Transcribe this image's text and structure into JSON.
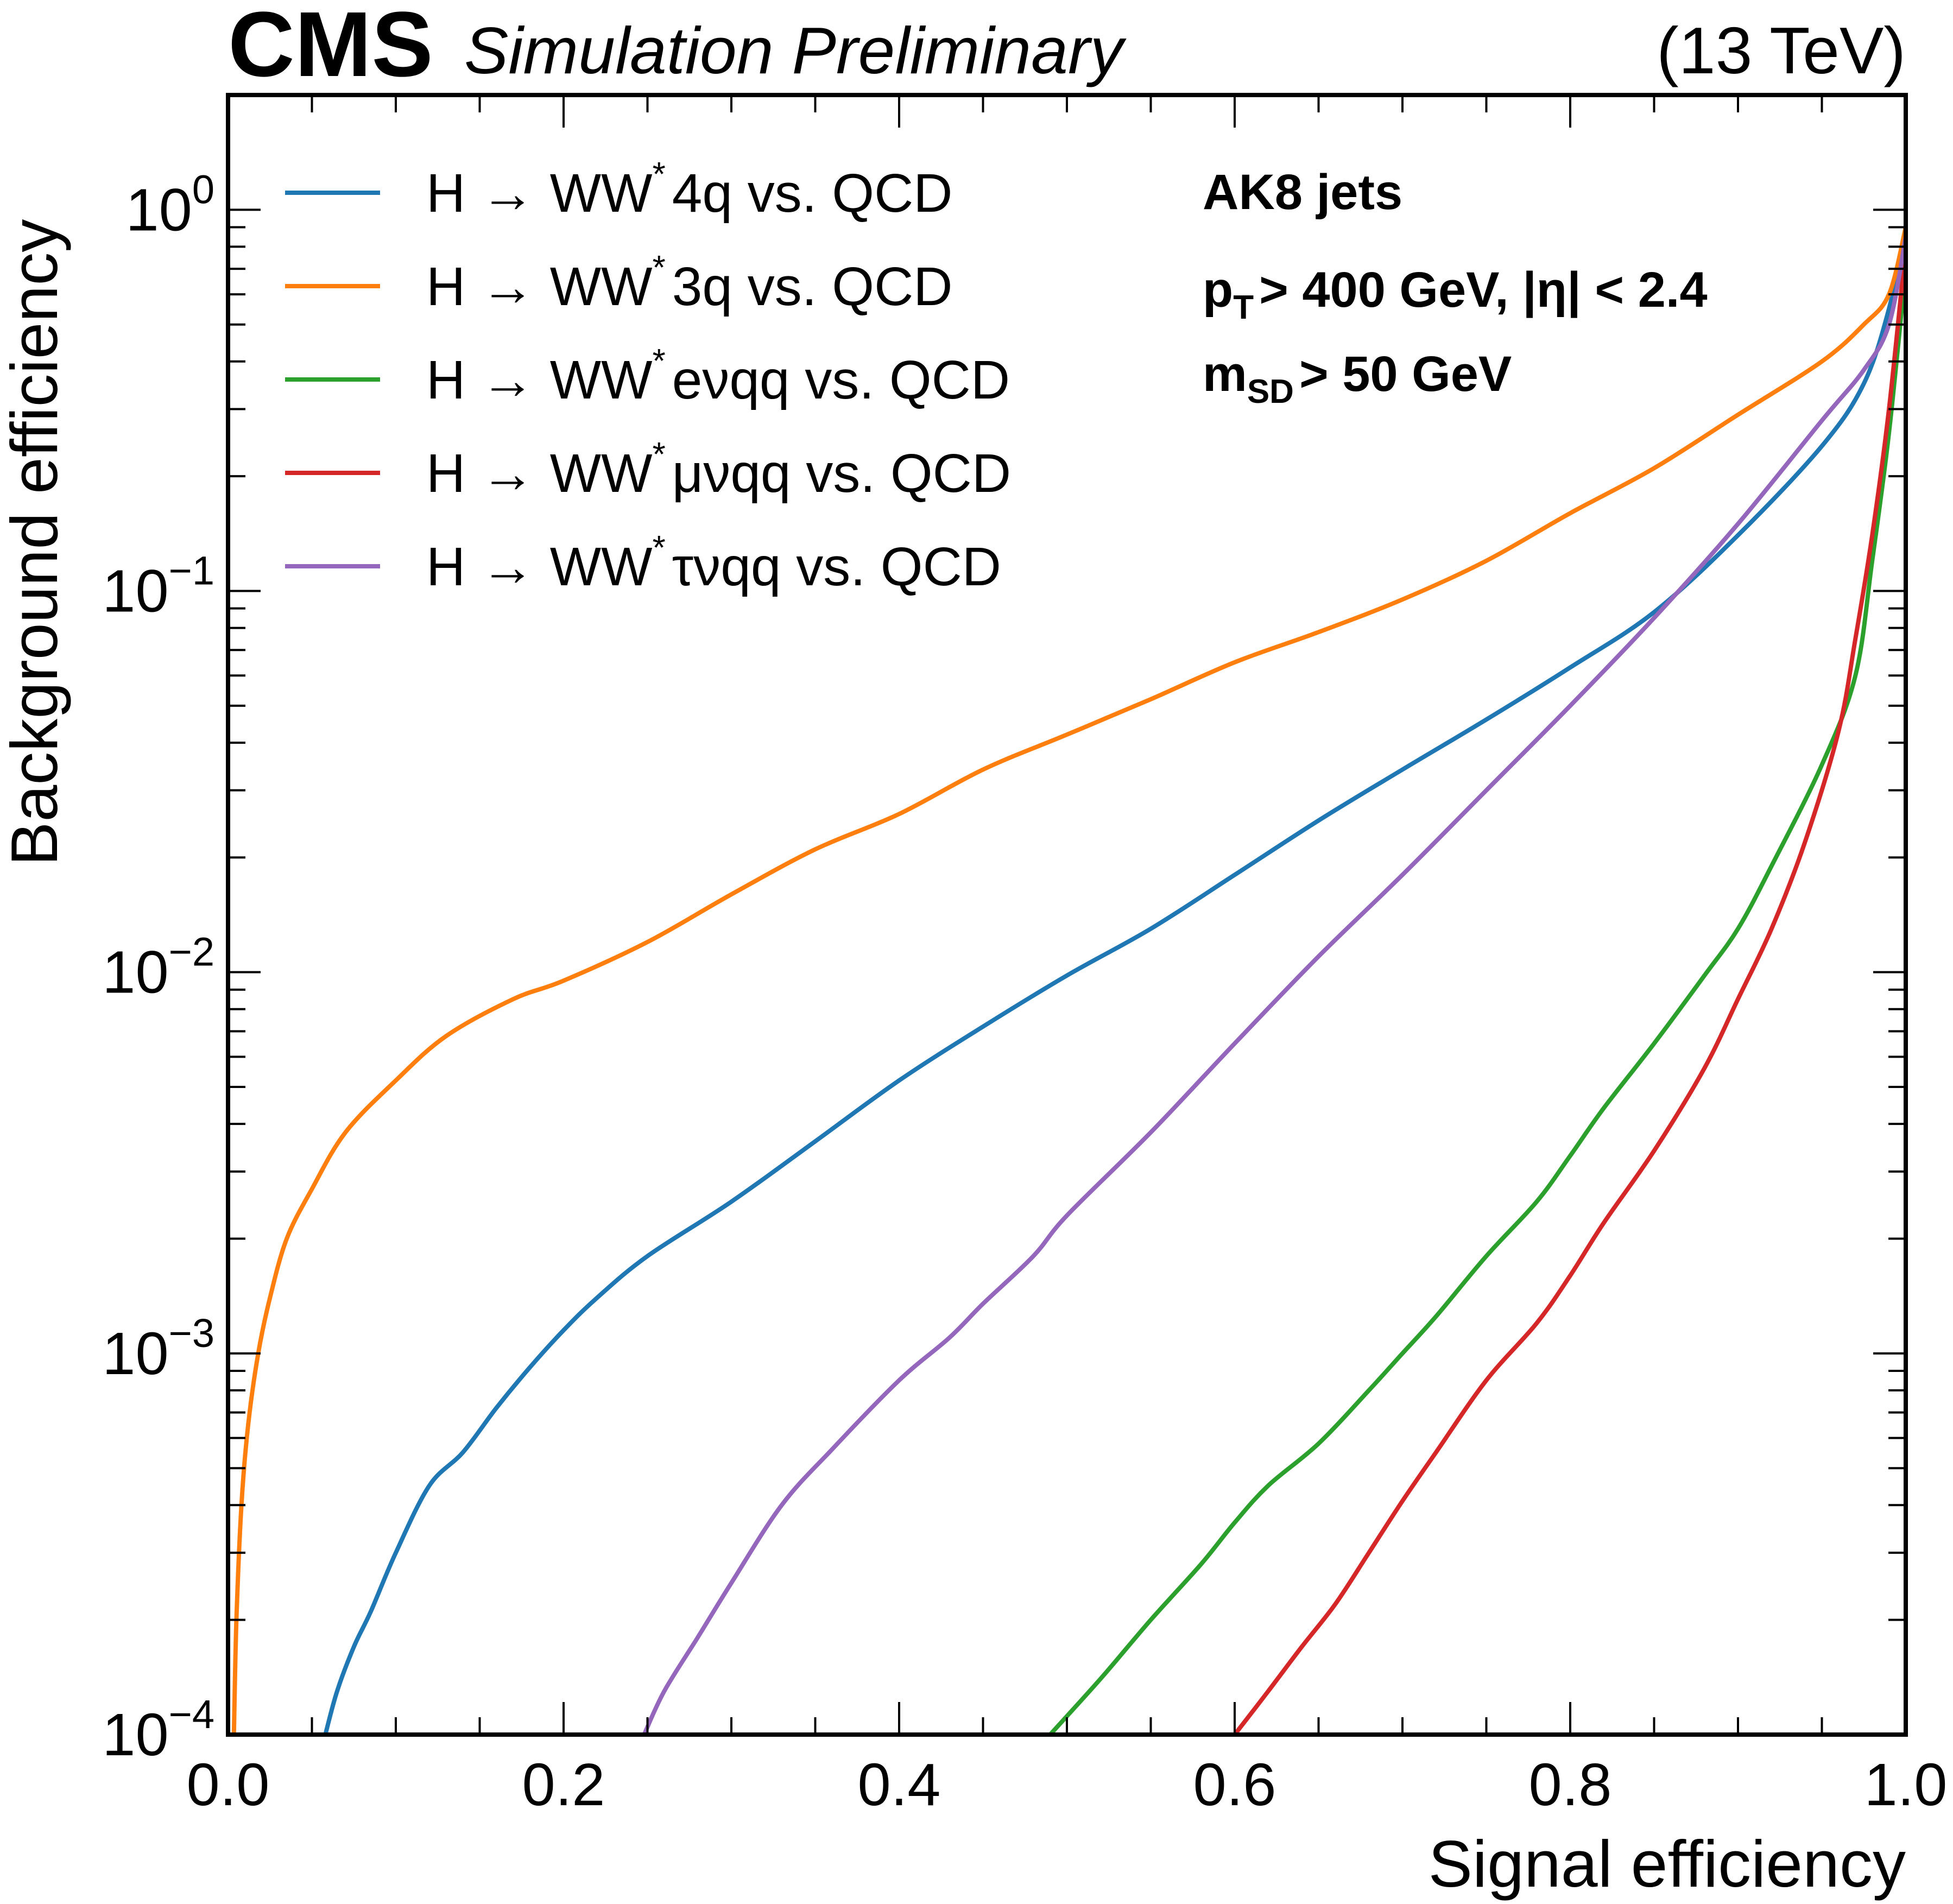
{
  "chart_data": {
    "type": "line",
    "experiment": "CMS",
    "status": "Simulation Preliminary",
    "energy": "(13 TeV)",
    "xlabel": "Signal efficiency",
    "ylabel": "Background efficiency",
    "xlim": [
      0,
      1
    ],
    "ylim": [
      0.0001,
      2
    ],
    "yscale": "log",
    "xticks": [
      {
        "value": 0.0,
        "label": "0.0"
      },
      {
        "value": 0.2,
        "label": "0.2"
      },
      {
        "value": 0.4,
        "label": "0.4"
      },
      {
        "value": 0.6,
        "label": "0.6"
      },
      {
        "value": 0.8,
        "label": "0.8"
      },
      {
        "value": 1.0,
        "label": "1.0"
      }
    ],
    "yticks": [
      {
        "value": 0.0001,
        "base": "10",
        "exp": "−4"
      },
      {
        "value": 0.001,
        "base": "10",
        "exp": "−3"
      },
      {
        "value": 0.01,
        "base": "10",
        "exp": "−2"
      },
      {
        "value": 0.1,
        "base": "10",
        "exp": "−1"
      },
      {
        "value": 1,
        "base": "10",
        "exp": "0"
      }
    ],
    "annotations": {
      "jets": "AK8 jets",
      "pt_sym": "p",
      "pt_sub": "T",
      "pt_cut": "> 400 GeV, |η| < 2.4",
      "msd_sym": "m",
      "msd_sub": "SD",
      "msd_cut": "> 50 GeV"
    },
    "series": [
      {
        "name": "H → WW* 4q vs. QCD",
        "leg_prefix": "H → WW",
        "leg_star": "*",
        "leg_suffix": "4q vs. QCD",
        "color": "#1f77b4",
        "x": [
          0.058,
          0.065,
          0.075,
          0.085,
          0.1,
          0.12,
          0.14,
          0.16,
          0.18,
          0.2,
          0.22,
          0.25,
          0.3,
          0.35,
          0.4,
          0.45,
          0.5,
          0.55,
          0.6,
          0.65,
          0.7,
          0.75,
          0.8,
          0.85,
          0.9,
          0.95,
          0.975,
          0.99,
          1.0
        ],
        "y": [
          0.0001,
          0.00013,
          0.00017,
          0.00021,
          0.0003,
          0.00045,
          0.00055,
          0.00072,
          0.00092,
          0.00115,
          0.0014,
          0.0018,
          0.0025,
          0.0036,
          0.0052,
          0.0072,
          0.0098,
          0.013,
          0.018,
          0.025,
          0.034,
          0.046,
          0.063,
          0.088,
          0.14,
          0.24,
          0.35,
          0.55,
          0.9
        ]
      },
      {
        "name": "H → WW* 3q vs. QCD",
        "leg_prefix": "H → WW",
        "leg_star": "*",
        "leg_suffix": "3q vs. QCD",
        "color": "#ff7f0e",
        "x": [
          0.0035,
          0.005,
          0.008,
          0.012,
          0.018,
          0.025,
          0.035,
          0.05,
          0.07,
          0.1,
          0.13,
          0.17,
          0.2,
          0.25,
          0.3,
          0.35,
          0.4,
          0.45,
          0.5,
          0.55,
          0.6,
          0.65,
          0.7,
          0.75,
          0.8,
          0.85,
          0.9,
          0.95,
          0.975,
          0.99,
          1.0
        ],
        "y": [
          0.0001,
          0.0002,
          0.0004,
          0.00065,
          0.001,
          0.0014,
          0.002,
          0.0027,
          0.0038,
          0.0052,
          0.0068,
          0.0085,
          0.0095,
          0.012,
          0.016,
          0.021,
          0.026,
          0.034,
          0.042,
          0.052,
          0.065,
          0.078,
          0.095,
          0.12,
          0.16,
          0.21,
          0.29,
          0.4,
          0.5,
          0.6,
          0.9
        ]
      },
      {
        "name": "H → WW* eνqq vs. QCD",
        "leg_prefix": "H → WW",
        "leg_star": "*",
        "leg_suffix": "eνqq vs. QCD",
        "color": "#2ca02c",
        "x": [
          0.49,
          0.52,
          0.55,
          0.58,
          0.6,
          0.62,
          0.65,
          0.68,
          0.7,
          0.72,
          0.75,
          0.78,
          0.8,
          0.82,
          0.85,
          0.88,
          0.9,
          0.92,
          0.95,
          0.97,
          0.98,
          0.99,
          1.0
        ],
        "y": [
          0.0001,
          0.00014,
          0.0002,
          0.00028,
          0.00036,
          0.00045,
          0.00058,
          0.0008,
          0.001,
          0.00125,
          0.0018,
          0.0025,
          0.0033,
          0.0044,
          0.0065,
          0.0098,
          0.013,
          0.019,
          0.035,
          0.06,
          0.12,
          0.26,
          0.7
        ]
      },
      {
        "name": "H → WW* μνqq vs. QCD",
        "leg_prefix": "H → WW",
        "leg_star": "*",
        "leg_suffix": "μνqq vs. QCD",
        "color": "#d62728",
        "x": [
          0.6,
          0.62,
          0.64,
          0.66,
          0.68,
          0.7,
          0.72,
          0.75,
          0.78,
          0.8,
          0.82,
          0.85,
          0.88,
          0.9,
          0.92,
          0.94,
          0.96,
          0.97,
          0.98,
          0.99,
          1.0
        ],
        "y": [
          0.0001,
          0.00013,
          0.00017,
          0.00022,
          0.0003,
          0.00041,
          0.00055,
          0.00085,
          0.0012,
          0.0016,
          0.0022,
          0.0034,
          0.0056,
          0.0085,
          0.013,
          0.022,
          0.043,
          0.075,
          0.14,
          0.3,
          0.8
        ]
      },
      {
        "name": "H → WW* τνqq vs. QCD",
        "leg_prefix": "H → WW",
        "leg_star": "*",
        "leg_suffix": "τνqq vs. QCD",
        "color": "#9467bd",
        "x": [
          0.248,
          0.26,
          0.28,
          0.3,
          0.33,
          0.36,
          0.4,
          0.43,
          0.45,
          0.48,
          0.5,
          0.55,
          0.6,
          0.65,
          0.7,
          0.75,
          0.8,
          0.85,
          0.9,
          0.95,
          0.975,
          0.99,
          1.0
        ],
        "y": [
          0.0001,
          0.00013,
          0.00018,
          0.00025,
          0.0004,
          0.00056,
          0.00085,
          0.0011,
          0.00135,
          0.0018,
          0.0023,
          0.0038,
          0.0065,
          0.011,
          0.018,
          0.03,
          0.05,
          0.085,
          0.15,
          0.28,
          0.38,
          0.5,
          0.85
        ]
      }
    ]
  }
}
